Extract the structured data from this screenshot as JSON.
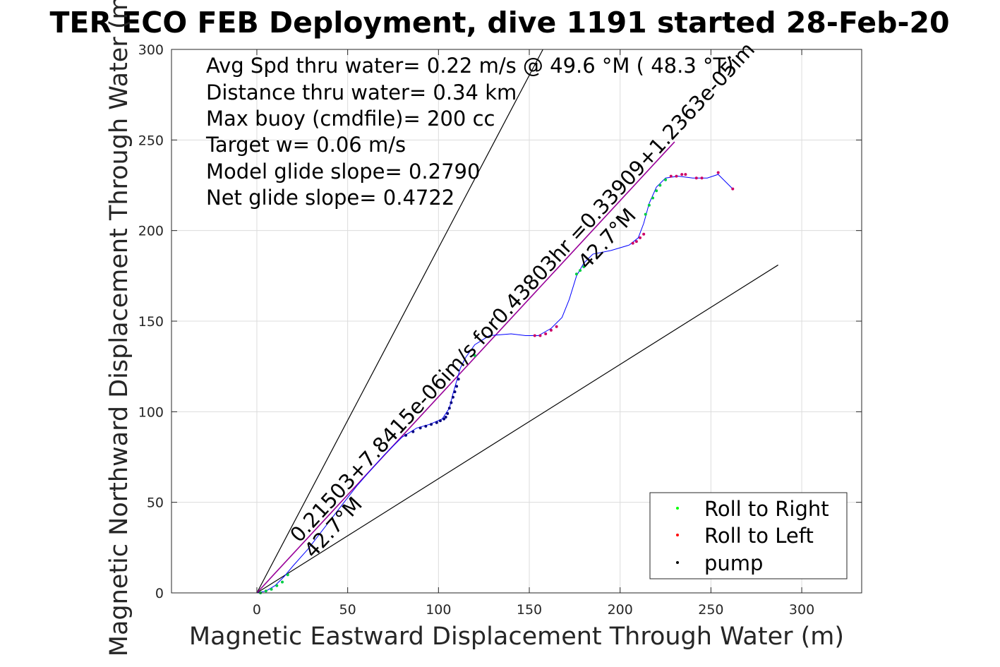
{
  "chart_data": {
    "type": "scatter",
    "title": "TER ECO FEB Deployment, dive 1191 started 28-Feb-20",
    "xlabel": "Magnetic Eastward Displacement Through Water (m)",
    "ylabel": "Magnetic Northward Displacement Through Water (m)",
    "xlim": [
      -47,
      333
    ],
    "ylim": [
      0,
      300
    ],
    "xticks": [
      "0",
      "50",
      "100",
      "150",
      "200",
      "250",
      "300"
    ],
    "yticks": [
      "0",
      "50",
      "100",
      "150",
      "200",
      "250",
      "300"
    ],
    "grid": true,
    "info_lines": [
      "Avg Spd thru water=  0.22 m/s @  49.6 °M ( 48.3 °T)",
      "Distance thru water=  0.34 km",
      "Max buoy (cmdfile)= 200 cc",
      "Target w= 0.06 m/s",
      "Model glide slope= 0.2790",
      "Net glide slope= 0.4722"
    ],
    "rotated_labels": {
      "fit_line": "0.21503+7.8415e-06im/s for0.43803hr =0.33909+1.2363e-05im",
      "heading_upper": "42.7°M",
      "heading_lower": "42.7°M"
    },
    "legend": {
      "position": "bottom-right",
      "entries": [
        {
          "label": "Roll to Right",
          "color": "#00ff00"
        },
        {
          "label": "Roll to Left",
          "color": "#ff0000"
        },
        {
          "label": "pump",
          "color": "#000000"
        }
      ]
    },
    "colors": {
      "track": "#0000ff",
      "fit_line": "#990099",
      "bound_lines": "#000000",
      "pump_dots": "#000080",
      "roll_right": "#00cc44",
      "roll_left": "#cc0066"
    },
    "reference_lines": [
      {
        "name": "upper",
        "x": [
          0,
          157.5
        ],
        "y": [
          0,
          300
        ]
      },
      {
        "name": "lower",
        "x": [
          0,
          287
        ],
        "y": [
          0,
          181
        ]
      },
      {
        "name": "fit",
        "x": [
          0,
          230
        ],
        "y": [
          0,
          249
        ]
      }
    ],
    "series": [
      {
        "name": "track",
        "x": [
          0,
          5,
          10,
          15,
          20,
          28,
          38,
          48,
          55,
          62,
          70,
          80,
          88,
          95,
          102,
          106,
          108,
          110,
          112,
          115,
          120,
          128,
          140,
          148,
          155,
          162,
          168,
          172,
          176,
          180,
          185,
          195,
          205,
          210,
          213,
          216,
          220,
          225,
          232,
          240,
          248,
          254,
          262
        ],
        "y": [
          0,
          1,
          4,
          9,
          15,
          24,
          37,
          50,
          59,
          67,
          76,
          86,
          91,
          93,
          96,
          102,
          110,
          117,
          124,
          130,
          137,
          142,
          143,
          142,
          142,
          146,
          152,
          162,
          175,
          182,
          187,
          189,
          192,
          196,
          204,
          215,
          224,
          229,
          230,
          229,
          229,
          231,
          223
        ]
      },
      {
        "name": "pump",
        "x": [
          82,
          86,
          90,
          93,
          96,
          99,
          101,
          103,
          104,
          105,
          106,
          107,
          108,
          109,
          110,
          111
        ],
        "y": [
          87,
          89,
          91,
          92,
          93,
          94,
          95,
          96,
          97,
          99,
          102,
          105,
          108,
          111,
          114,
          118
        ]
      },
      {
        "name": "Roll to Right",
        "x": [
          2,
          5,
          8,
          11,
          14,
          17,
          120,
          176,
          178,
          180,
          214,
          216,
          218,
          220,
          222,
          225
        ],
        "y": [
          0,
          1,
          2,
          4,
          6,
          10,
          131,
          176,
          178,
          180,
          209,
          214,
          218,
          222,
          225,
          228
        ]
      },
      {
        "name": "Roll to Left",
        "x": [
          153,
          156,
          159,
          162,
          165,
          207,
          209,
          211,
          213,
          228,
          231,
          234,
          236,
          242,
          245,
          254,
          262
        ],
        "y": [
          142,
          142,
          143,
          145,
          147,
          193,
          194,
          196,
          198,
          230,
          230,
          231,
          231,
          229,
          229,
          232,
          223
        ]
      }
    ]
  }
}
